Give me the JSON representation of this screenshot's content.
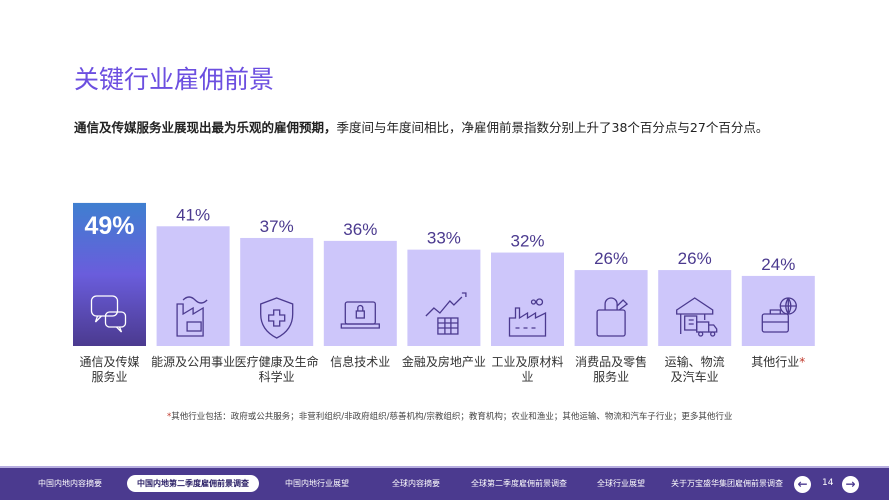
{
  "title": "关键行业雇佣前景",
  "subtitle": {
    "bold": "通信及传媒服务业展现出最为乐观的雇佣预期，",
    "rest": "季度间与年度间相比，净雇佣前景指数分别上升了38个百分点与27个百分点。"
  },
  "chart_data": {
    "type": "bar",
    "categories": [
      "通信及传媒服务业",
      "能源及公用事业",
      "医疗健康及生命科学业",
      "信息技术业",
      "金融及房地产业",
      "工业及原材料业",
      "消费品及零售服务业",
      "运输、物流及汽车业",
      "其他行业*"
    ],
    "labels": [
      [
        "通信及传媒",
        "服务业"
      ],
      [
        "能源及公用事业"
      ],
      [
        "医疗健康及生命",
        "科学业"
      ],
      [
        "信息技术业"
      ],
      [
        "金融及房地产业"
      ],
      [
        "工业及原材料",
        "业"
      ],
      [
        "消费品及零售",
        "服务业"
      ],
      [
        "运输、物流",
        "及汽车业"
      ],
      [
        "其他行业*"
      ]
    ],
    "values": [
      49,
      41,
      37,
      36,
      33,
      32,
      26,
      26,
      24
    ],
    "data_labels": [
      "49%",
      "41%",
      "37%",
      "36%",
      "33%",
      "32%",
      "26%",
      "26%",
      "24%"
    ],
    "icons": [
      "chat-bubbles-icon",
      "factory-battery-icon",
      "shield-cross-icon",
      "laptop-lock-icon",
      "chart-growth-icon",
      "factory-icon",
      "shopping-bag-icon",
      "warehouse-truck-icon",
      "briefcase-globe-icon"
    ],
    "colors": {
      "highlight_top": "#3f7fd0",
      "highlight_bottom": "#4b3a8f",
      "bar": "#cdc6fa",
      "label": "#4b3a8f"
    }
  },
  "footnote": {
    "star": "*",
    "text": "其他行业包括：政府或公共服务；非营利组织/非政府组织/慈善机构/宗教组织；教育机构；农业和渔业；其他运输、物流和汽车子行业；更多其他行业"
  },
  "nav": {
    "items": [
      "中国内地内容摘要",
      "中国内地第二季度雇佣前景调查",
      "中国内地行业展望",
      "全球内容摘要",
      "全球第二季度雇佣前景调查",
      "全球行业展望",
      "关于万宝盛华集团雇佣前景调查"
    ],
    "active": 1,
    "page": "14",
    "prev": "←",
    "next": "→"
  }
}
